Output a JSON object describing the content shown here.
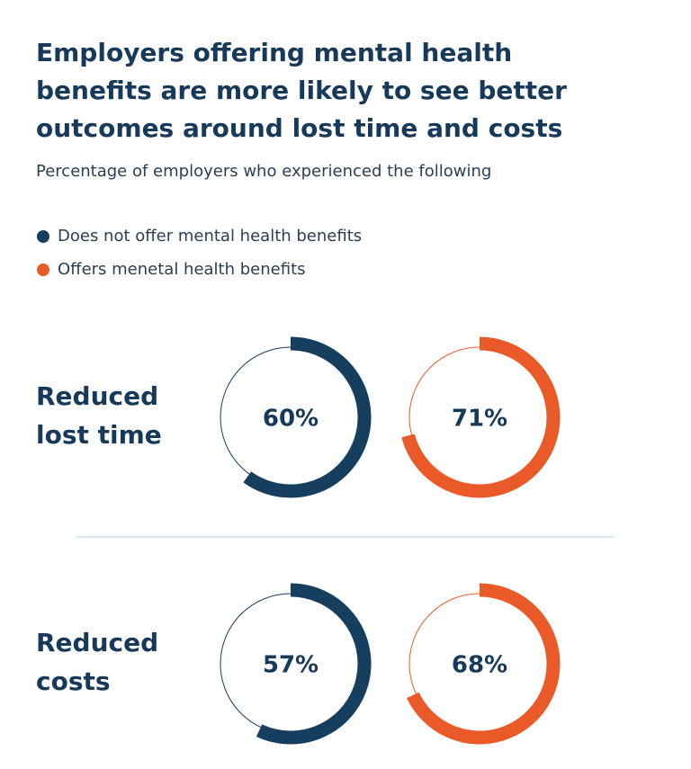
{
  "chart_data": {
    "type": "donut",
    "title": "Employers offering mental health benefits are more likely to see better outcomes around lost time and costs",
    "subtitle": "Percentage of employers who experienced the following",
    "categories": [
      "Reduced lost time",
      "Reduced costs"
    ],
    "series": [
      {
        "name": "Does not offer mental health benefits",
        "color": "#163e5f",
        "values": [
          60,
          57
        ],
        "value_labels": [
          "60%",
          "57%"
        ]
      },
      {
        "name": "Offers menetal health benefits",
        "color": "#ea5a28",
        "values": [
          71,
          68
        ],
        "value_labels": [
          "71%",
          "68%"
        ]
      }
    ],
    "ylim": [
      0,
      100
    ]
  }
}
